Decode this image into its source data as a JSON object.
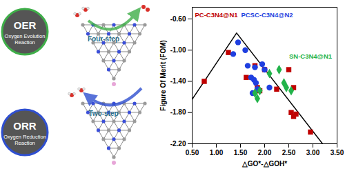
{
  "chart_data": {
    "type": "scatter",
    "x_label": "△GO*-△GOH*",
    "y_label": "Figure Of Merit (FOM)",
    "xlim": [
      0.5,
      3.5
    ],
    "ylim": [
      -2.2,
      -0.45
    ],
    "xticks": [
      {
        "value": 0.5,
        "label": "0.50"
      },
      {
        "value": 1.0,
        "label": "1.00"
      },
      {
        "value": 1.5,
        "label": "1.50"
      },
      {
        "value": 2.0,
        "label": "2.00"
      },
      {
        "value": 2.5,
        "label": "2.50"
      },
      {
        "value": 3.0,
        "label": "3.00"
      },
      {
        "value": 3.5,
        "label": "3.50"
      }
    ],
    "yticks": [
      {
        "value": -0.6,
        "label": "-0.60"
      },
      {
        "value": -1.0,
        "label": "-1.00"
      },
      {
        "value": -1.4,
        "label": "-1.40"
      },
      {
        "value": -1.8,
        "label": "-1.80"
      },
      {
        "value": -2.2,
        "label": "-2.20"
      }
    ],
    "grid": false,
    "series": [
      {
        "type": "line",
        "color": "#000000",
        "line_style": "solid",
        "x": [
          0.5,
          1.42,
          3.2
        ],
        "y": [
          -1.63,
          -0.78,
          -2.2
        ]
      },
      {
        "type": "scatter",
        "name": "PC-C3N4@N1",
        "color": "#c00000",
        "marker": "square",
        "label": {
          "x": 1.0,
          "y": -0.55
        },
        "x": [
          0.75,
          1.25,
          1.62,
          1.8,
          1.85,
          1.9,
          2.0,
          2.25,
          2.5,
          2.6,
          2.55,
          2.6,
          2.65,
          2.95
        ],
        "y": [
          -1.4,
          -1.03,
          -1.35,
          -1.2,
          -1.48,
          -1.52,
          -1.25,
          -1.5,
          -1.25,
          -1.48,
          -1.8,
          -1.85,
          -1.82,
          -2.05
        ]
      },
      {
        "type": "scatter",
        "name": "PCSC-C3N4@N2",
        "color": "#1f3fe0",
        "marker": "circle",
        "label": {
          "x": 2.05,
          "y": -0.55
        },
        "x": [
          1.35,
          1.45,
          1.6,
          1.65,
          1.72,
          1.78,
          1.8,
          1.82,
          1.85,
          1.95,
          2.0,
          2.1,
          1.75
        ],
        "y": [
          -1.05,
          -0.9,
          -1.0,
          -1.2,
          -1.35,
          -1.38,
          -1.22,
          -1.42,
          -1.5,
          -1.18,
          -1.25,
          -1.48,
          -1.55
        ]
      },
      {
        "type": "scatter",
        "name": "SN-C3N4@N1",
        "color": "#22b34a",
        "marker": "diamond",
        "label": {
          "x": 2.95,
          "y": -1.08
        },
        "x": [
          1.8,
          1.9,
          2.1,
          2.3,
          2.4,
          2.45,
          2.55,
          1.85
        ],
        "y": [
          -1.55,
          -1.52,
          -1.3,
          -1.25,
          -1.42,
          -1.48,
          -1.52,
          -1.62
        ]
      }
    ]
  },
  "diagram": {
    "reactions": [
      {
        "title": "OER",
        "subtitle": "Oxygen Evolution Reaction",
        "color": "#3fae49"
      },
      {
        "title": "ORR",
        "subtitle": "Oxygen Reduction Reaction",
        "color": "#2f4fd0"
      }
    ],
    "steps": [
      "Four-step",
      "Two-step"
    ]
  }
}
